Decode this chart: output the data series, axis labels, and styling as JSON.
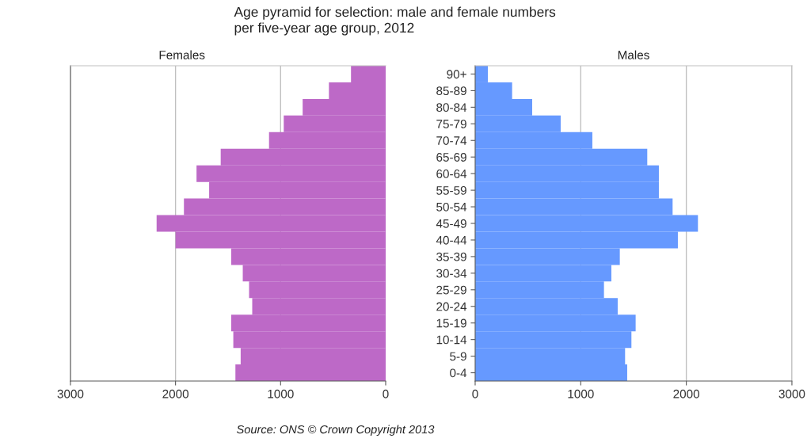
{
  "chart_data": [
    {
      "type": "bar",
      "orientation": "horizontal",
      "title": "Females",
      "annotations": [
        "Age pyramid for selection: male and female numbers\nper five-year age group, 2012",
        "Source: ONS © Crown Copyright 2013"
      ],
      "categories": [
        null,
        null,
        null,
        null,
        null,
        null,
        null,
        null,
        null,
        null,
        null,
        null,
        null,
        null,
        null,
        null,
        null,
        null,
        null
      ],
      "series": [
        {
          "color": "#bd69c7",
          "values": [
            330,
            540,
            790,
            970,
            1110,
            1570,
            1800,
            1680,
            1920,
            2180,
            2000,
            1470,
            1360,
            1300,
            1270,
            1470,
            1450,
            1380,
            1430
          ]
        }
      ],
      "xlim": [
        3000,
        0
      ],
      "xticks": [
        3000,
        2000,
        1000,
        0
      ],
      "grid": "x",
      "tick_labels": "x"
    },
    {
      "type": "bar",
      "orientation": "horizontal",
      "title": "Males",
      "categories": [
        "90+",
        "85-89",
        "80-84",
        "75-79",
        "70-74",
        "65-69",
        "60-64",
        "55-59",
        "50-54",
        "45-49",
        "40-44",
        "35-39",
        "30-34",
        "25-29",
        "20-24",
        "15-19",
        "10-14",
        "5-9",
        "0-4"
      ],
      "series": [
        {
          "color": "#6699ff",
          "values": [
            120,
            350,
            540,
            810,
            1110,
            1630,
            1740,
            1740,
            1870,
            2110,
            1920,
            1370,
            1290,
            1220,
            1350,
            1520,
            1480,
            1420,
            1440
          ]
        }
      ],
      "xlim": [
        0,
        3000
      ],
      "xticks": [
        0,
        1000,
        2000,
        3000
      ],
      "grid": "x"
    }
  ]
}
